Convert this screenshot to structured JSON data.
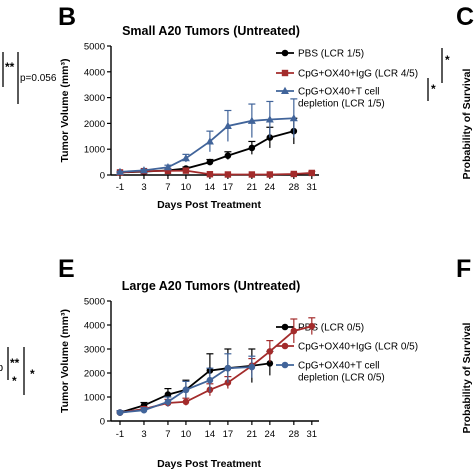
{
  "panel_letters": {
    "top_middle": "B",
    "top_right": "C",
    "bottom_middle": "E",
    "bottom_right": "F"
  },
  "left_fragments": {
    "top_sig": "**",
    "top_p": "p=0.056",
    "bottom_sig_1": "**",
    "bottom_sig_2": "*",
    "bottom_sig_3": "*",
    "bottom_edge_char": "p"
  },
  "right_cropped": {
    "top_ylabel": "Probability of Survival",
    "bottom_ylabel": "Probability of Survival"
  },
  "chart_data": [
    {
      "type": "line",
      "title": "Small A20 Tumors (Untreated)",
      "xlabel": "Days Post Treatment",
      "ylabel": "Tumor Volume (mm³)",
      "x_ticks": [
        -1,
        3,
        7,
        10,
        14,
        17,
        21,
        24,
        28,
        31
      ],
      "y_ticks": [
        0,
        1000,
        2000,
        3000,
        4000,
        5000
      ],
      "ylim": [
        0,
        5000
      ],
      "grid": false,
      "legend_position": "top-right",
      "legend_sig": [
        "*",
        "*"
      ],
      "series": [
        {
          "name": "PBS (LCR 1/5)",
          "color": "#000000",
          "marker": "circle",
          "x": [
            -1,
            3,
            7,
            10,
            14,
            17,
            21,
            24,
            28
          ],
          "y": [
            100,
            130,
            180,
            250,
            500,
            750,
            1050,
            1450,
            1700
          ],
          "err": [
            20,
            30,
            40,
            60,
            100,
            150,
            250,
            400,
            500
          ]
        },
        {
          "name": "CpG+OX40+IgG (LCR 4/5)",
          "color": "#a32b2b",
          "marker": "square",
          "x": [
            -1,
            3,
            7,
            10,
            14,
            17,
            21,
            24,
            28,
            31
          ],
          "y": [
            100,
            150,
            160,
            170,
            30,
            20,
            20,
            20,
            40,
            80
          ],
          "err": [
            20,
            30,
            80,
            80,
            10,
            10,
            10,
            10,
            40,
            60
          ]
        },
        {
          "name": "CpG+OX40+T cell depletion (LCR 1/5)",
          "legend_lines": [
            "CpG+OX40+T cell",
            "depletion (LCR 1/5)"
          ],
          "color": "#41649a",
          "marker": "triangle",
          "x": [
            -1,
            3,
            7,
            10,
            14,
            17,
            21,
            24,
            28
          ],
          "y": [
            120,
            180,
            300,
            650,
            1300,
            1900,
            2100,
            2150,
            2200
          ],
          "err": [
            20,
            40,
            80,
            150,
            400,
            600,
            650,
            700,
            750
          ]
        }
      ]
    },
    {
      "type": "line",
      "title": "Large A20 Tumors (Untreated)",
      "xlabel": "Days Post Treatment",
      "ylabel": "Tumor Volume (mm³)",
      "x_ticks": [
        -1,
        3,
        7,
        10,
        14,
        17,
        21,
        24,
        28,
        31
      ],
      "y_ticks": [
        0,
        1000,
        2000,
        3000,
        4000,
        5000
      ],
      "ylim": [
        0,
        5000
      ],
      "grid": false,
      "legend_position": "right",
      "series": [
        {
          "name": "PBS (LCR 0/5)",
          "color": "#000000",
          "marker": "circle",
          "x": [
            -1,
            3,
            7,
            10,
            14,
            17,
            21,
            24
          ],
          "y": [
            350,
            650,
            1100,
            1300,
            2100,
            2200,
            2300,
            2400
          ],
          "err": [
            80,
            120,
            250,
            400,
            700,
            800,
            700,
            500
          ]
        },
        {
          "name": "CpG+OX40+IgG (LCR 0/5)",
          "color": "#a32b2b",
          "marker": "circle",
          "x": [
            -1,
            3,
            7,
            10,
            14,
            17,
            21,
            24,
            28,
            31
          ],
          "y": [
            350,
            500,
            750,
            800,
            1300,
            1600,
            2300,
            2900,
            3750,
            3950
          ],
          "err": [
            80,
            100,
            150,
            150,
            250,
            250,
            300,
            450,
            500,
            350
          ]
        },
        {
          "name": "CpG+OX40+T cell depletion (LCR 0/5)",
          "legend_lines": [
            "CpG+OX40+T cell",
            "depletion (LCR 0/5)"
          ],
          "color": "#41649a",
          "marker": "circle",
          "x": [
            -1,
            3,
            7,
            10,
            14,
            17,
            21
          ],
          "y": [
            350,
            450,
            800,
            1300,
            1700,
            2200,
            2250
          ],
          "err": [
            80,
            100,
            200,
            350,
            500,
            600,
            450
          ]
        }
      ]
    }
  ]
}
